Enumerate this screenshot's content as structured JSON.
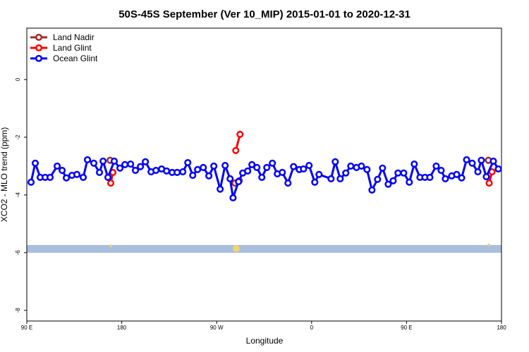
{
  "chart_data": {
    "type": "line",
    "title": "50S-45S September (Ver 10_MIP)   2015-01-01 to 2020-12-31",
    "x_label": "Longitude",
    "y_label": "XCO2 - MLO trend (ppm)",
    "xlim": [
      90,
      540
    ],
    "ylim": [
      -8.37,
      1.78
    ],
    "xticks": [
      {
        "value": 90,
        "label": "90 E"
      },
      {
        "value": 180,
        "label": "180"
      },
      {
        "value": 270,
        "label": "90 W"
      },
      {
        "value": 360,
        "label": "0"
      },
      {
        "value": 450,
        "label": "90 E"
      },
      {
        "value": 540,
        "label": "180"
      }
    ],
    "yticks": [
      0,
      -2,
      -4,
      -6,
      -8
    ],
    "legend": "top-left",
    "series": [
      {
        "name": "Land Nadir",
        "color": "#a52a2a",
        "x": [
          169.0,
          null,
          287.4,
          291.4,
          null,
          527.6
        ],
        "values": [
          -2.8,
          null,
          -3.59,
          -3.51,
          null,
          -2.8
        ]
      },
      {
        "name": "Land Glint",
        "color": "#ff0000",
        "x": [
          169.6,
          171.6,
          null,
          288.1,
          292.1,
          null,
          528.3,
          531.0
        ],
        "values": [
          -3.59,
          -3.22,
          null,
          -2.46,
          -1.9,
          null,
          -3.59,
          -3.2
        ]
      },
      {
        "name": "Ocean Glint",
        "color": "#0000ff",
        "x": [
          94.0,
          98.0,
          102.7,
          107.4,
          112.1,
          118.8,
          123.5,
          127.5,
          132.8,
          137.5,
          143.5,
          147.5,
          153.5,
          158.9,
          162.3,
          166.9,
          172.9,
          178.3,
          183.0,
          188.4,
          193.0,
          197.7,
          202.4,
          207.8,
          212.4,
          217.8,
          222.5,
          227.8,
          232.5,
          237.9,
          242.6,
          247.3,
          251.9,
          257.3,
          262.6,
          267.3,
          273.3,
          278.0,
          282.7,
          285.5,
          290.7,
          294.7,
          299.4,
          303.4,
          308.1,
          312.8,
          317.5,
          322.8,
          327.5,
          332.2,
          337.6,
          342.9,
          348.3,
          352.3,
          357.6,
          363.0,
          367.0,
          378.4,
          382.4,
          387.1,
          392.4,
          397.1,
          402.5,
          407.2,
          412.5,
          417.2,
          422.5,
          427.2,
          432.6,
          437.3,
          441.9,
          447.3,
          452.6,
          457.3,
          462.7,
          467.4,
          472.1,
          478.1,
          482.8,
          486.8,
          492.8,
          497.5,
          502.2,
          506.9,
          512.2,
          517.6,
          520.9,
          525.6,
          532.3,
          537.0
        ],
        "values": [
          -3.56,
          -2.9,
          -3.39,
          -3.39,
          -3.39,
          -3.0,
          -3.15,
          -3.41,
          -3.32,
          -3.29,
          -3.39,
          -2.78,
          -2.9,
          -3.22,
          -2.83,
          -3.39,
          -2.83,
          -3.07,
          -2.95,
          -2.93,
          -3.15,
          -3.02,
          -2.85,
          -3.2,
          -3.15,
          -3.1,
          -3.17,
          -3.22,
          -3.22,
          -3.2,
          -2.88,
          -3.32,
          -3.12,
          -3.05,
          -3.34,
          -3.0,
          -3.8,
          -2.98,
          -3.44,
          -4.1,
          -3.54,
          -3.24,
          -3.17,
          -2.95,
          -3.05,
          -3.39,
          -3.05,
          -2.9,
          -3.27,
          -3.22,
          -3.59,
          -3.02,
          -3.12,
          -3.1,
          -2.98,
          -3.56,
          -3.29,
          -3.44,
          -2.85,
          -3.44,
          -3.24,
          -3.0,
          -3.05,
          -3.0,
          -3.12,
          -3.83,
          -3.46,
          -3.07,
          -3.63,
          -3.51,
          -3.24,
          -3.24,
          -3.56,
          -2.93,
          -3.39,
          -3.39,
          -3.39,
          -3.0,
          -3.15,
          -3.44,
          -3.34,
          -3.29,
          -3.41,
          -2.78,
          -2.9,
          -3.2,
          -2.8,
          -3.37,
          -2.83,
          -3.1
        ]
      }
    ]
  }
}
